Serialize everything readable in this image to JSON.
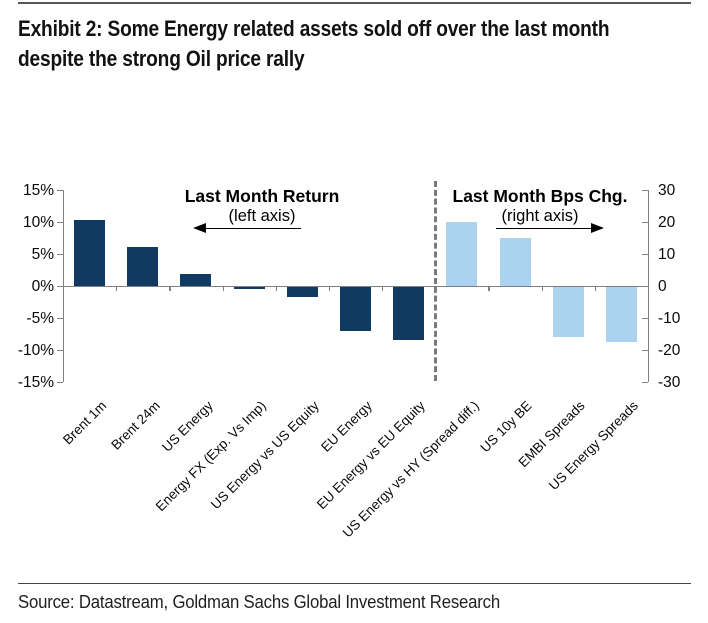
{
  "header": {
    "title": "Exhibit 2: Some Energy related assets sold off over the last month despite the strong Oil price rally"
  },
  "footer": {
    "source": "Source: Datastream, Goldman Sachs Global Investment Research"
  },
  "chart_data": {
    "type": "bar",
    "dual_axis": true,
    "grid": false,
    "categories": [
      "Brent 1m",
      "Brent 24m",
      "US Energy",
      "Energy FX (Exp. Vs Imp)",
      "US Energy vs US Equity",
      "EU Energy",
      "EU Energy vs EU Equity",
      "US Energy vs HY (Spread diff.)",
      "US 10y BE",
      "EMBI Spreads",
      "US Energy Spreads"
    ],
    "series": [
      {
        "name": "Last Month Return",
        "axis": "left",
        "unit": "%",
        "color": "#113A60",
        "values": [
          10.3,
          6.1,
          1.8,
          -0.4,
          -1.7,
          -7.0,
          -8.4,
          null,
          null,
          null,
          null
        ]
      },
      {
        "name": "Last Month Bps Chg.",
        "axis": "right",
        "unit": "bps",
        "color": "#ABD3F0",
        "values": [
          null,
          null,
          null,
          null,
          null,
          null,
          null,
          20,
          15,
          -16,
          -17.5
        ]
      }
    ],
    "left_axis": {
      "min": -15,
      "max": 15,
      "ticks": [
        "15%",
        "10%",
        "5%",
        "0%",
        "-5%",
        "-10%",
        "-15%"
      ]
    },
    "right_axis": {
      "min": -30,
      "max": 30,
      "ticks": [
        "30",
        "20",
        "10",
        "0",
        "-10",
        "-20",
        "-30"
      ]
    },
    "annotations": {
      "left": {
        "label": "Last Month Return",
        "sublabel": "(left axis)",
        "arrow_direction": "left"
      },
      "right": {
        "label": "Last Month Bps Chg.",
        "sublabel": "(right axis)",
        "arrow_direction": "right"
      }
    },
    "separator": {
      "after_index": 6,
      "style": "dashed"
    }
  },
  "colors": {
    "navy_bar": "#113A60",
    "light_blue_bar": "#ABD3F0",
    "axis_gray": "#808080",
    "separator_gray": "#7A7A7A",
    "rule_gray": "#555759"
  }
}
